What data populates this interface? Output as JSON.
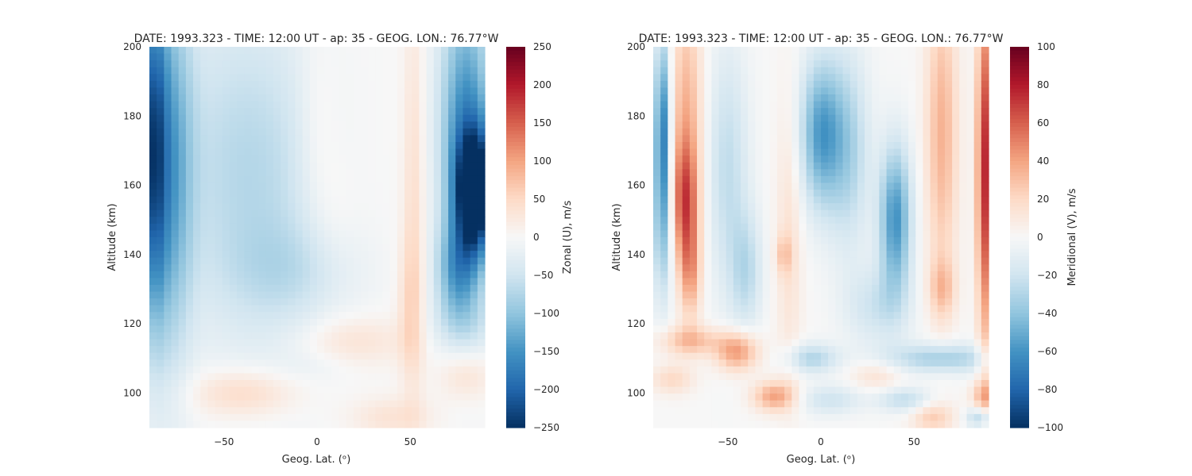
{
  "chart_data": [
    {
      "type": "heatmap",
      "title": "DATE: 1993.323 - TIME: 12:00 UT - ap:  35 - GEOG. LON.:  76.77$^\\circ$W",
      "title_display": "DATE: 1993.323 - TIME: 12:00 UT - ap:  35 - GEOG. LON.:  76.77°W",
      "xlabel": "Geog. Lat. (ᵒ)",
      "ylabel": "Altitude (km)",
      "xlim": [
        -90,
        90
      ],
      "ylim": [
        90,
        200
      ],
      "xticks": [
        -50,
        0,
        50
      ],
      "yticks": [
        100,
        120,
        140,
        160,
        180,
        200
      ],
      "colorbar": {
        "label": "Zonal (U), m/s",
        "vmin": -250,
        "vmax": 250,
        "ticks": [
          250,
          200,
          150,
          100,
          50,
          0,
          -50,
          -100,
          -150,
          -200,
          -250
        ],
        "colormap": "RdBu_r"
      }
    },
    {
      "type": "heatmap",
      "title": "DATE: 1993.323 - TIME: 12:00 UT - ap:  35 - GEOG. LON.:  76.77$^\\circ$W",
      "title_display": "DATE: 1993.323 - TIME: 12:00 UT - ap:  35 - GEOG. LON.:  76.77°W",
      "xlabel": "Geog. Lat. (ᵒ)",
      "ylabel": "Altitude (km)",
      "xlim": [
        -90,
        90
      ],
      "ylim": [
        90,
        200
      ],
      "xticks": [
        -50,
        0,
        50
      ],
      "yticks": [
        100,
        120,
        140,
        160,
        180,
        200
      ],
      "colorbar": {
        "label": "Meridional (V), m/s",
        "vmin": -100,
        "vmax": 100,
        "ticks": [
          100,
          80,
          60,
          40,
          20,
          0,
          -20,
          -40,
          -60,
          -80,
          -100
        ],
        "colormap": "RdBu_r"
      }
    }
  ]
}
